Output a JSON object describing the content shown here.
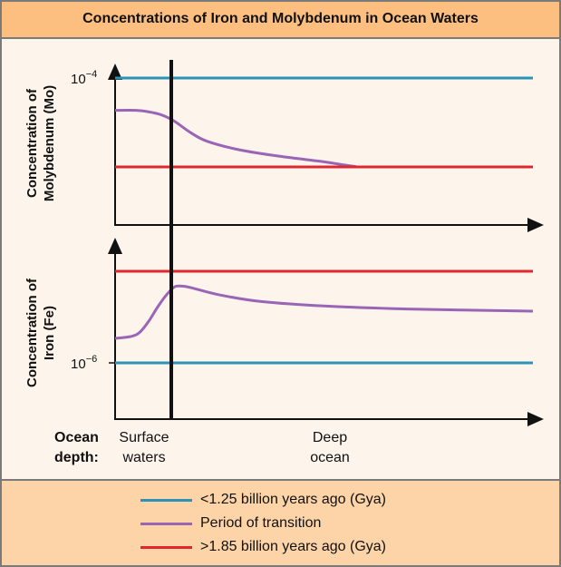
{
  "title": "Concentrations of Iron and Molybdenum in Ocean Waters",
  "colors": {
    "blue": "#2a93b6",
    "purple": "#9a65b5",
    "red": "#e0262f",
    "header_bg": "#fdbf80",
    "plot_bg": "#fdf5ec"
  },
  "chart_data": [
    {
      "type": "line",
      "ylabel": [
        "Concentration of",
        "Molybdenum (Mo)"
      ],
      "ytick": "10",
      "ytick_exp": "−4",
      "series": [
        {
          "name": "<1.25 billion years ago (Gya)",
          "color": "#2a93b6",
          "points": [
            [
              0,
              100
            ],
            [
              100,
              100
            ]
          ]
        },
        {
          "name": "Period of transition",
          "color": "#9a65b5",
          "points": [
            [
              0,
              78
            ],
            [
              5,
              78
            ],
            [
              8,
              77
            ],
            [
              11,
              75
            ],
            [
              14,
              71
            ],
            [
              18,
              63
            ],
            [
              22,
              57
            ],
            [
              30,
              51
            ],
            [
              40,
              46.5
            ],
            [
              50,
              43
            ],
            [
              57,
              40
            ],
            [
              62,
              39.5
            ],
            [
              100,
              39.5
            ]
          ]
        },
        {
          "name": ">1.85 billion years ago (Gya)",
          "color": "#e0262f",
          "points": [
            [
              0,
              39.5
            ],
            [
              100,
              39.5
            ]
          ]
        }
      ]
    },
    {
      "type": "line",
      "ylabel": [
        "Concentration of",
        "Iron (Fe)"
      ],
      "ytick": "10",
      "ytick_exp": "−6",
      "series": [
        {
          "name": "<1.25 billion years ago (Gya)",
          "color": "#2a93b6",
          "points": [
            [
              0,
              38
            ],
            [
              100,
              38
            ]
          ]
        },
        {
          "name": "Period of transition",
          "color": "#9a65b5",
          "points": [
            [
              0,
              54.6
            ],
            [
              4,
              56
            ],
            [
              6,
              59
            ],
            [
              8,
              66
            ],
            [
              10,
              75
            ],
            [
              12,
              83
            ],
            [
              14,
              89
            ],
            [
              15.5,
              90
            ],
            [
              18,
              89
            ],
            [
              25,
              84
            ],
            [
              35,
              79.5
            ],
            [
              50,
              76.5
            ],
            [
              70,
              74.5
            ],
            [
              100,
              73
            ]
          ]
        },
        {
          "name": ">1.85 billion years ago (Gya)",
          "color": "#e0262f",
          "points": [
            [
              0,
              100
            ],
            [
              100,
              100
            ]
          ]
        }
      ]
    }
  ],
  "xaxis": {
    "label": [
      "Ocean",
      "depth:"
    ],
    "surface": [
      "Surface",
      "waters"
    ],
    "deep": [
      "Deep",
      "ocean"
    ]
  },
  "legend": [
    {
      "label": "<1.25 billion years ago (Gya)",
      "color": "#2a93b6"
    },
    {
      "label": "Period of transition",
      "color": "#9a65b5"
    },
    {
      "label": ">1.85 billion years ago (Gya)",
      "color": "#e0262f"
    }
  ]
}
